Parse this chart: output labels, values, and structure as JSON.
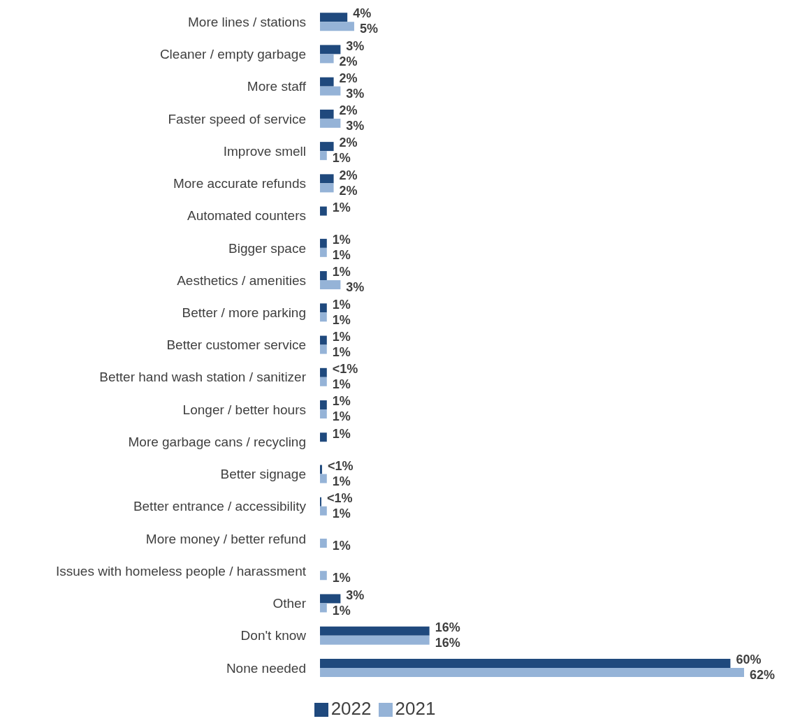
{
  "chart_data": {
    "type": "bar",
    "orientation": "horizontal",
    "legend": "bottom",
    "categories": [
      "More lines / stations",
      "Cleaner / empty garbage",
      "More staff",
      "Faster speed of service",
      "Improve smell",
      "More accurate refunds",
      "Automated counters",
      "Bigger space",
      "Aesthetics / amenities",
      "Better / more parking",
      "Better customer service",
      "Better hand wash station / sanitizer",
      "Longer / better hours",
      "More garbage cans / recycling",
      "Better signage",
      "Better entrance / accessibility",
      "More money / better refund",
      "Issues with homeless people / harassment",
      "Other",
      "Don't know",
      "None needed"
    ],
    "series": [
      {
        "name": "2022",
        "color": "#1f497d",
        "values": [
          4,
          3,
          2,
          2,
          2,
          2,
          1,
          1,
          1,
          1,
          1,
          1,
          1,
          1,
          0.3,
          0.2,
          null,
          null,
          3,
          16,
          60
        ],
        "value_labels": [
          "4%",
          "3%",
          "2%",
          "2%",
          "2%",
          "2%",
          "1%",
          "1%",
          "1%",
          "1%",
          "1%",
          "<1%",
          "1%",
          "1%",
          "<1%",
          "<1%",
          null,
          null,
          "3%",
          "16%",
          "60%"
        ]
      },
      {
        "name": "2021",
        "color": "#95b3d7",
        "values": [
          5,
          2,
          3,
          3,
          1,
          2,
          null,
          1,
          3,
          1,
          1,
          1,
          1,
          null,
          1,
          1,
          1,
          1,
          1,
          16,
          62
        ],
        "value_labels": [
          "5%",
          "2%",
          "3%",
          "3%",
          "1%",
          "2%",
          null,
          "1%",
          "3%",
          "1%",
          "1%",
          "1%",
          "1%",
          null,
          "1%",
          "1%",
          "1%",
          "1%",
          "1%",
          "16%",
          "62%"
        ]
      }
    ]
  }
}
